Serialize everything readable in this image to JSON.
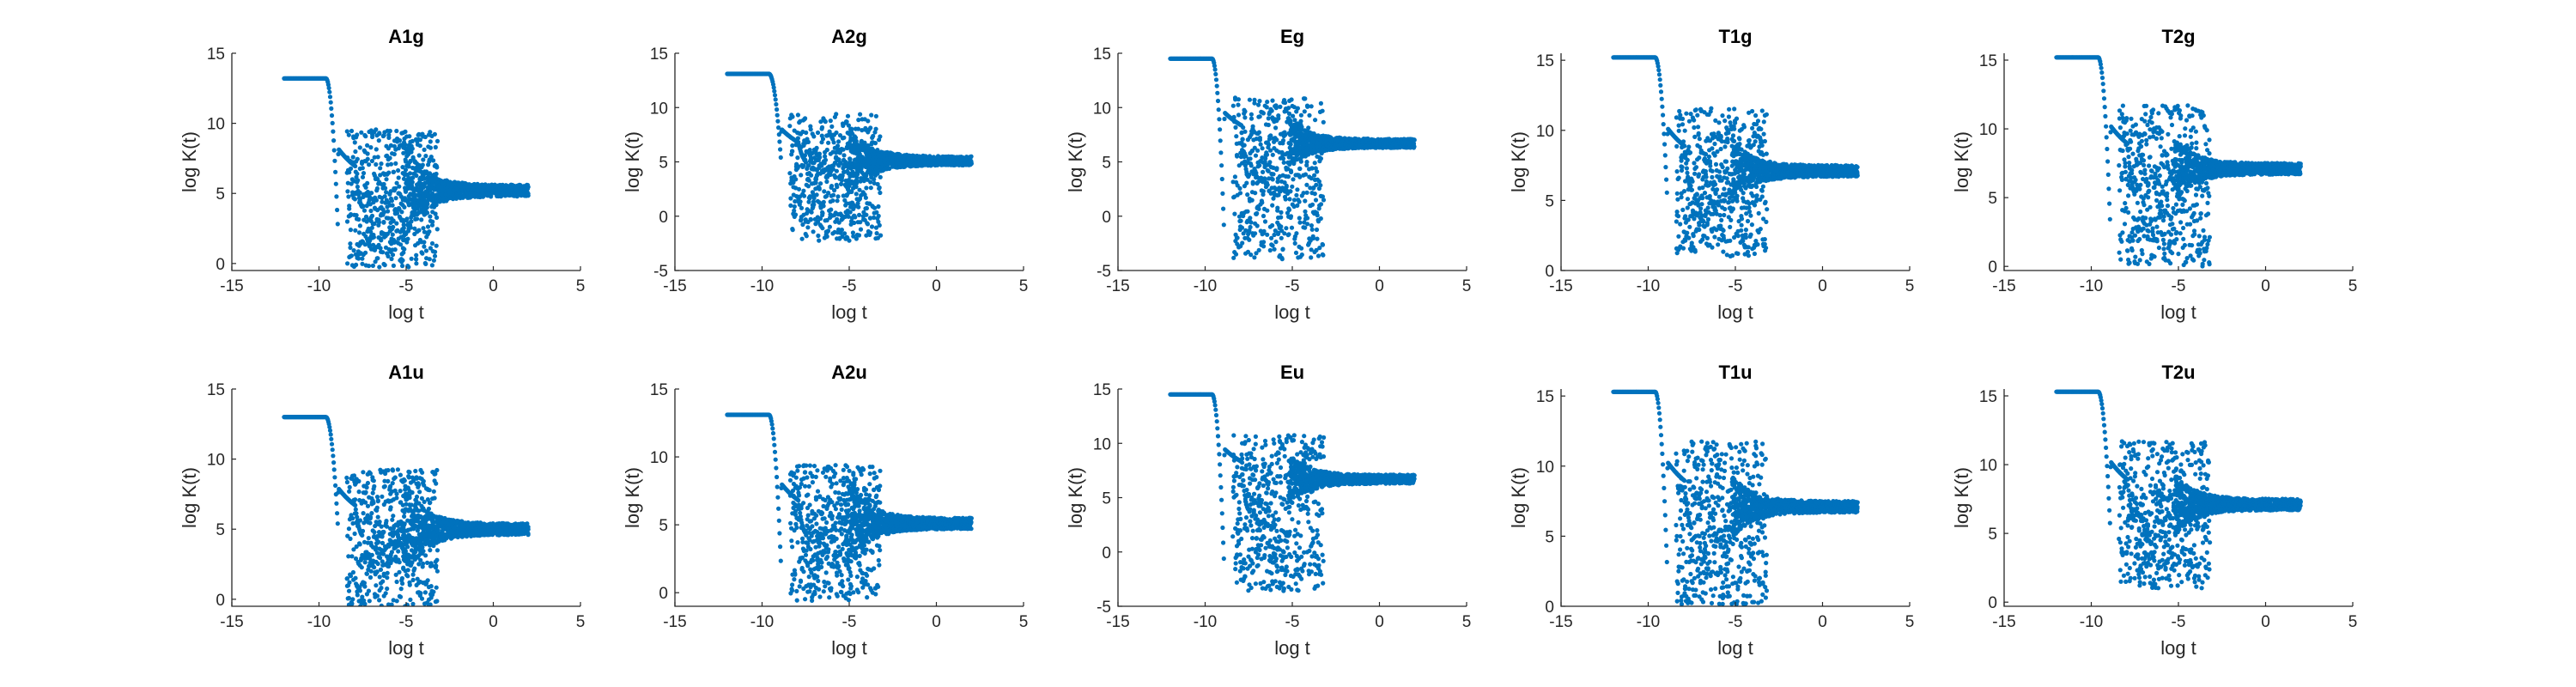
{
  "chart_data": [
    {
      "type": "scatter",
      "title": "A1g",
      "xlabel": "log t",
      "ylabel": "log K(t)",
      "xlim": [
        -15,
        5
      ],
      "ylim": [
        -0.5,
        15
      ],
      "xticks": [
        -15,
        -10,
        -5,
        0,
        5
      ],
      "yticks": [
        0,
        5,
        10,
        15
      ],
      "grid": false,
      "series": [
        {
          "color": "#0072BD",
          "plateau": 13.2,
          "plateau_end": -9.6,
          "dip_log_t": [
            -8.4,
            -7.5
          ],
          "dip_depth": [
            0,
            -0.3
          ],
          "peak_value": 9.6,
          "noise_start": -5.2,
          "noise_max": 8.6,
          "noise_min": -0.3,
          "settle_level": 5.2,
          "x_end": 2
        }
      ]
    },
    {
      "type": "scatter",
      "title": "A2g",
      "xlabel": "log t",
      "ylabel": "log K(t)",
      "xlim": [
        -15,
        5
      ],
      "ylim": [
        -5,
        15
      ],
      "xticks": [
        -15,
        -10,
        -5,
        0,
        5
      ],
      "yticks": [
        -5,
        0,
        5,
        10,
        15
      ],
      "grid": false,
      "series": [
        {
          "color": "#0072BD",
          "plateau": 13.1,
          "plateau_end": -9.6,
          "dip_log_t": [
            -8.4,
            -7.5
          ],
          "dip_depth": [
            2.8,
            3.0
          ],
          "peak_value": 9.4,
          "noise_start": -5.2,
          "noise_max": 8.5,
          "noise_min": -2.3,
          "settle_level": 5.1,
          "x_end": 2
        }
      ]
    },
    {
      "type": "scatter",
      "title": "Eg",
      "xlabel": "log t",
      "ylabel": "log K(t)",
      "xlim": [
        -15,
        5
      ],
      "ylim": [
        -5,
        15
      ],
      "xticks": [
        -15,
        -10,
        -5,
        0,
        5
      ],
      "yticks": [
        -5,
        0,
        5,
        10,
        15
      ],
      "grid": false,
      "series": [
        {
          "color": "#0072BD",
          "plateau": 14.5,
          "plateau_end": -9.6,
          "dip_log_t": [
            -8.4,
            -7.5
          ],
          "dip_depth": [
            -4.0,
            -3.8
          ],
          "peak_value": 10.9,
          "noise_start": -5.2,
          "noise_max": 8.6,
          "noise_min": -4.0,
          "settle_level": 6.7,
          "x_end": 2
        }
      ]
    },
    {
      "type": "scatter",
      "title": "T1g",
      "xlabel": "log t",
      "ylabel": "log K(t)",
      "xlim": [
        -15,
        5
      ],
      "ylim": [
        0,
        15.5
      ],
      "xticks": [
        -15,
        -10,
        -5,
        0,
        5
      ],
      "yticks": [
        0,
        5,
        10,
        15
      ],
      "grid": false,
      "series": [
        {
          "color": "#0072BD",
          "plateau": 15.2,
          "plateau_end": -9.6,
          "dip_log_t": [
            -8.4,
            -7.5
          ],
          "dip_depth": [
            2.8,
            1.0
          ],
          "peak_value": 11.6,
          "noise_start": -5.2,
          "noise_max": 9.0,
          "noise_min": 1.0,
          "settle_level": 7.1,
          "x_end": 2
        }
      ]
    },
    {
      "type": "scatter",
      "title": "T2g",
      "xlabel": "log t",
      "ylabel": "log K(t)",
      "xlim": [
        -15,
        5
      ],
      "ylim": [
        -0.3,
        15.5
      ],
      "xticks": [
        -15,
        -10,
        -5,
        0,
        5
      ],
      "yticks": [
        0,
        5,
        10,
        15
      ],
      "grid": false,
      "series": [
        {
          "color": "#0072BD",
          "plateau": 15.2,
          "plateau_end": -9.6,
          "dip_log_t": [
            -8.4,
            -7.5
          ],
          "dip_depth": [
            0.5,
            0.0
          ],
          "peak_value": 11.7,
          "noise_start": -5.2,
          "noise_max": 9.0,
          "noise_min": 0.0,
          "settle_level": 7.1,
          "x_end": 2
        }
      ]
    },
    {
      "type": "scatter",
      "title": "A1u",
      "xlabel": "log t",
      "ylabel": "log K(t)",
      "xlim": [
        -15,
        5
      ],
      "ylim": [
        -0.5,
        15
      ],
      "xticks": [
        -15,
        -10,
        -5,
        0,
        5
      ],
      "yticks": [
        0,
        5,
        10,
        15
      ],
      "grid": false,
      "series": [
        {
          "color": "#0072BD",
          "plateau": 13.0,
          "plateau_end": -9.6,
          "dip_log_t": [
            -8.4,
            -7.5
          ],
          "dip_depth": [
            2.8,
            1.5
          ],
          "peak_value": 9.3,
          "noise_start": -5.2,
          "noise_max": 8.5,
          "noise_min": -0.5,
          "settle_level": 5.0,
          "x_end": 2
        }
      ]
    },
    {
      "type": "scatter",
      "title": "A2u",
      "xlabel": "log t",
      "ylabel": "log K(t)",
      "xlim": [
        -15,
        5
      ],
      "ylim": [
        -1,
        15
      ],
      "xticks": [
        -15,
        -10,
        -5,
        0,
        5
      ],
      "yticks": [
        0,
        5,
        10,
        15
      ],
      "grid": false,
      "series": [
        {
          "color": "#0072BD",
          "plateau": 13.1,
          "plateau_end": -9.6,
          "dip_log_t": [
            -8.4,
            -7.5
          ],
          "dip_depth": [
            -0.5,
            1.0
          ],
          "peak_value": 9.4,
          "noise_start": -5.2,
          "noise_max": 8.5,
          "noise_min": -0.6,
          "settle_level": 5.1,
          "x_end": 2
        }
      ]
    },
    {
      "type": "scatter",
      "title": "Eu",
      "xlabel": "log t",
      "ylabel": "log K(t)",
      "xlim": [
        -15,
        5
      ],
      "ylim": [
        -5,
        15
      ],
      "xticks": [
        -15,
        -10,
        -5,
        0,
        5
      ],
      "yticks": [
        -5,
        0,
        5,
        10,
        15
      ],
      "grid": false,
      "series": [
        {
          "color": "#0072BD",
          "plateau": 14.5,
          "plateau_end": -9.6,
          "dip_log_t": [
            -8.4,
            -7.5
          ],
          "dip_depth": [
            -3.8,
            -3.0
          ],
          "peak_value": 10.8,
          "noise_start": -5.2,
          "noise_max": 8.6,
          "noise_min": -3.6,
          "settle_level": 6.7,
          "x_end": 2
        }
      ]
    },
    {
      "type": "scatter",
      "title": "T1u",
      "xlabel": "log t",
      "ylabel": "log K(t)",
      "xlim": [
        -15,
        5
      ],
      "ylim": [
        0,
        15.5
      ],
      "xticks": [
        -15,
        -10,
        -5,
        0,
        5
      ],
      "yticks": [
        0,
        5,
        10,
        15
      ],
      "grid": false,
      "series": [
        {
          "color": "#0072BD",
          "plateau": 15.3,
          "plateau_end": -9.6,
          "dip_log_t": [
            -8.4,
            -7.5
          ],
          "dip_depth": [
            0.2,
            0.5
          ],
          "peak_value": 11.8,
          "noise_start": -5.2,
          "noise_max": 9.0,
          "noise_min": 0.1,
          "settle_level": 7.1,
          "x_end": 2
        }
      ]
    },
    {
      "type": "scatter",
      "title": "T2u",
      "xlabel": "log t",
      "ylabel": "log K(t)",
      "xlim": [
        -15,
        5
      ],
      "ylim": [
        -0.3,
        15.5
      ],
      "xticks": [
        -15,
        -10,
        -5,
        0,
        5
      ],
      "yticks": [
        0,
        5,
        10,
        15
      ],
      "grid": false,
      "series": [
        {
          "color": "#0072BD",
          "plateau": 15.3,
          "plateau_end": -9.6,
          "dip_log_t": [
            -8.4,
            -7.5
          ],
          "dip_depth": [
            3.0,
            1.5
          ],
          "peak_value": 11.7,
          "noise_start": -5.2,
          "noise_max": 9.0,
          "noise_min": 1.0,
          "settle_level": 7.1,
          "x_end": 2
        }
      ]
    }
  ]
}
